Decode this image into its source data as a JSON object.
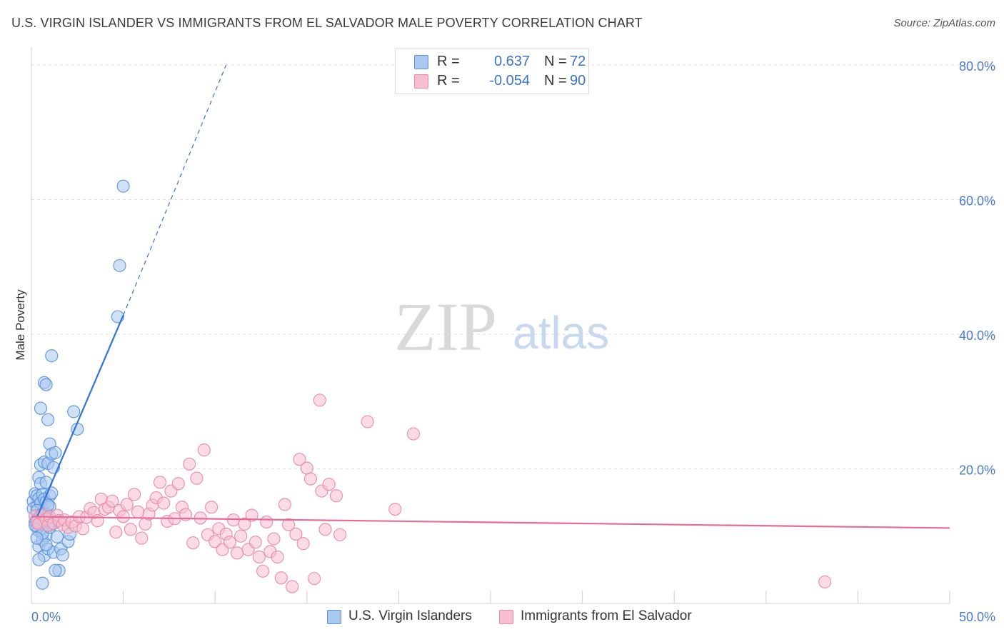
{
  "header": {
    "title": "U.S. VIRGIN ISLANDER VS IMMIGRANTS FROM EL SALVADOR MALE POVERTY CORRELATION CHART",
    "source": "Source: ZipAtlas.com"
  },
  "watermark": {
    "zip": "ZIP",
    "atlas": "atlas"
  },
  "legend": {
    "rows": [
      {
        "r_label": "R =",
        "r_value": "0.637",
        "n_label": "N =",
        "n_value": "72",
        "color": "#a9c8f0",
        "border": "#5b93dc"
      },
      {
        "r_label": "R =",
        "r_value": "-0.054",
        "n_label": "N =",
        "n_value": "90",
        "color": "#f7bfd0",
        "border": "#e98aa8"
      }
    ]
  },
  "bottom_legend": [
    {
      "label": "U.S. Virgin Islanders",
      "color": "#a9c8f0",
      "border": "#5b93dc"
    },
    {
      "label": "Immigrants from El Salvador",
      "color": "#f7bfd0",
      "border": "#e98aa8"
    }
  ],
  "chart_data": {
    "type": "scatter",
    "title": "U.S. VIRGIN ISLANDER VS IMMIGRANTS FROM EL SALVADOR MALE POVERTY CORRELATION CHART",
    "xlabel": "",
    "ylabel": "Male Poverty",
    "xlim": [
      0,
      50
    ],
    "ylim": [
      0,
      80
    ],
    "x_tick_labels": [
      "0.0%",
      "50.0%"
    ],
    "y_ticks": [
      20,
      40,
      60,
      80
    ],
    "y_tick_labels": [
      "20.0%",
      "40.0%",
      "60.0%",
      "80.0%"
    ],
    "grid": true,
    "series": [
      {
        "name": "U.S. Virgin Islanders",
        "color": "#5b93dc",
        "fill": "#a9c8f0",
        "trend": {
          "x": [
            0.3,
            5.0
          ],
          "y": [
            12.8,
            42.8
          ],
          "dash_to": [
            10.6,
            80.0
          ],
          "color": "#2f75d3"
        },
        "points": [
          [
            0.1,
            15.2
          ],
          [
            0.1,
            14.1
          ],
          [
            0.2,
            16.3
          ],
          [
            0.2,
            13.0
          ],
          [
            0.2,
            12.1
          ],
          [
            0.3,
            11.5
          ],
          [
            0.3,
            16.0
          ],
          [
            0.3,
            14.5
          ],
          [
            0.3,
            12.4
          ],
          [
            0.4,
            18.7
          ],
          [
            0.4,
            15.6
          ],
          [
            0.4,
            10.8
          ],
          [
            0.4,
            8.5
          ],
          [
            0.5,
            29.0
          ],
          [
            0.5,
            20.6
          ],
          [
            0.5,
            17.8
          ],
          [
            0.5,
            14.9
          ],
          [
            0.5,
            12.0
          ],
          [
            0.6,
            16.2
          ],
          [
            0.6,
            13.5
          ],
          [
            0.6,
            11.2
          ],
          [
            0.6,
            9.4
          ],
          [
            0.7,
            32.8
          ],
          [
            0.7,
            21.0
          ],
          [
            0.7,
            15.5
          ],
          [
            0.7,
            12.9
          ],
          [
            0.7,
            7.1
          ],
          [
            0.8,
            32.5
          ],
          [
            0.8,
            18.0
          ],
          [
            0.8,
            15.1
          ],
          [
            0.8,
            11.9
          ],
          [
            0.8,
            10.1
          ],
          [
            0.9,
            27.3
          ],
          [
            0.9,
            20.8
          ],
          [
            0.9,
            13.2
          ],
          [
            0.9,
            8.1
          ],
          [
            1.0,
            23.7
          ],
          [
            1.0,
            16.0
          ],
          [
            1.0,
            12.4
          ],
          [
            1.0,
            14.4
          ],
          [
            1.1,
            36.8
          ],
          [
            1.1,
            22.2
          ],
          [
            1.1,
            16.4
          ],
          [
            1.1,
            11.7
          ],
          [
            1.2,
            20.2
          ],
          [
            1.2,
            7.6
          ],
          [
            1.3,
            22.4
          ],
          [
            1.3,
            12.0
          ],
          [
            1.4,
            9.9
          ],
          [
            1.5,
            4.9
          ],
          [
            1.6,
            8.1
          ],
          [
            1.7,
            7.2
          ],
          [
            2.0,
            9.2
          ],
          [
            2.1,
            10.3
          ],
          [
            2.3,
            28.5
          ],
          [
            2.5,
            25.9
          ],
          [
            0.2,
            11.6
          ],
          [
            0.3,
            13.8
          ],
          [
            0.4,
            12.7
          ],
          [
            0.5,
            13.1
          ],
          [
            0.6,
            10.4
          ],
          [
            0.7,
            12.2
          ],
          [
            0.8,
            8.7
          ],
          [
            0.9,
            14.6
          ],
          [
            1.0,
            11.3
          ],
          [
            0.4,
            6.5
          ],
          [
            0.6,
            3.0
          ],
          [
            1.3,
            4.9
          ],
          [
            4.8,
            50.2
          ],
          [
            5.0,
            62.0
          ],
          [
            4.7,
            42.6
          ],
          [
            0.3,
            9.7
          ]
        ]
      },
      {
        "name": "Immigrants from El Salvador",
        "color": "#e98aa8",
        "fill": "#f7bfd0",
        "trend": {
          "x": [
            0.0,
            50.0
          ],
          "y": [
            12.9,
            11.2
          ],
          "color": "#e8699a"
        },
        "points": [
          [
            0.2,
            13.0
          ],
          [
            0.3,
            12.1
          ],
          [
            0.4,
            11.8
          ],
          [
            0.6,
            13.2
          ],
          [
            0.8,
            12.5
          ],
          [
            0.9,
            11.6
          ],
          [
            1.0,
            12.9
          ],
          [
            1.2,
            11.9
          ],
          [
            1.4,
            13.1
          ],
          [
            1.5,
            12.3
          ],
          [
            1.7,
            11.7
          ],
          [
            1.8,
            12.4
          ],
          [
            2.0,
            11.3
          ],
          [
            2.2,
            12.1
          ],
          [
            2.4,
            11.5
          ],
          [
            2.6,
            12.9
          ],
          [
            2.8,
            11.1
          ],
          [
            3.0,
            12.8
          ],
          [
            3.2,
            14.1
          ],
          [
            3.4,
            13.5
          ],
          [
            3.6,
            12.3
          ],
          [
            3.8,
            15.5
          ],
          [
            4.0,
            14.0
          ],
          [
            4.2,
            14.3
          ],
          [
            4.4,
            15.2
          ],
          [
            4.6,
            10.6
          ],
          [
            4.8,
            13.8
          ],
          [
            5.0,
            12.9
          ],
          [
            5.2,
            14.7
          ],
          [
            5.4,
            11.0
          ],
          [
            5.6,
            16.2
          ],
          [
            5.8,
            13.6
          ],
          [
            6.0,
            9.7
          ],
          [
            6.2,
            11.8
          ],
          [
            6.4,
            13.3
          ],
          [
            6.6,
            14.6
          ],
          [
            6.8,
            15.7
          ],
          [
            7.0,
            18.0
          ],
          [
            7.2,
            14.9
          ],
          [
            7.4,
            12.2
          ],
          [
            7.6,
            16.7
          ],
          [
            7.8,
            12.6
          ],
          [
            8.0,
            17.8
          ],
          [
            8.2,
            14.3
          ],
          [
            8.4,
            13.2
          ],
          [
            8.6,
            20.7
          ],
          [
            8.8,
            9.0
          ],
          [
            9.0,
            18.6
          ],
          [
            9.2,
            12.7
          ],
          [
            9.4,
            22.8
          ],
          [
            9.6,
            10.2
          ],
          [
            9.8,
            14.3
          ],
          [
            10.0,
            9.2
          ],
          [
            10.2,
            11.1
          ],
          [
            10.4,
            8.0
          ],
          [
            10.6,
            10.3
          ],
          [
            10.8,
            9.1
          ],
          [
            11.0,
            12.4
          ],
          [
            11.2,
            7.5
          ],
          [
            11.4,
            10.0
          ],
          [
            11.6,
            11.8
          ],
          [
            11.8,
            8.0
          ],
          [
            12.0,
            13.1
          ],
          [
            12.2,
            9.1
          ],
          [
            12.4,
            6.9
          ],
          [
            12.6,
            4.8
          ],
          [
            12.8,
            12.1
          ],
          [
            13.0,
            7.7
          ],
          [
            13.2,
            9.6
          ],
          [
            13.4,
            6.9
          ],
          [
            13.6,
            3.8
          ],
          [
            13.8,
            14.7
          ],
          [
            14.0,
            11.7
          ],
          [
            14.2,
            2.5
          ],
          [
            14.4,
            10.3
          ],
          [
            14.6,
            21.4
          ],
          [
            14.8,
            8.9
          ],
          [
            15.0,
            20.1
          ],
          [
            15.2,
            18.5
          ],
          [
            15.4,
            3.7
          ],
          [
            15.8,
            16.7
          ],
          [
            16.0,
            11.0
          ],
          [
            16.2,
            17.7
          ],
          [
            16.6,
            16.0
          ],
          [
            16.8,
            10.2
          ],
          [
            15.7,
            30.2
          ],
          [
            18.3,
            27.0
          ],
          [
            20.8,
            25.2
          ],
          [
            19.8,
            14.0
          ],
          [
            43.2,
            3.2
          ]
        ]
      }
    ]
  }
}
